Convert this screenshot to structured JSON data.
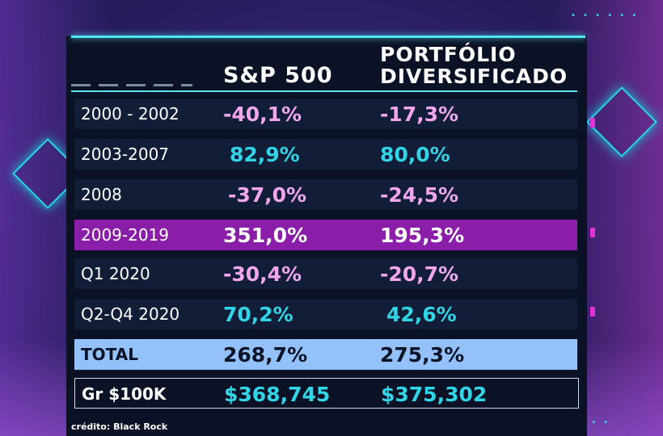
{
  "header": {
    "col1": "S&P 500",
    "col2_line1": "PORTFÓLIO",
    "col2_line2": "DIVERSIFICADO"
  },
  "rows": [
    {
      "label": "2000 - 2002",
      "sp500": "-40,1%",
      "portfolio": "-17,3%"
    },
    {
      "label": "2003-2007",
      "sp500": "82,9%",
      "portfolio": "80,0%"
    },
    {
      "label": "2008",
      "sp500": "-37,0%",
      "portfolio": "-24,5%"
    },
    {
      "label": "2009-2019",
      "sp500": "351,0%",
      "portfolio": "195,3%"
    },
    {
      "label": "Q1 2020",
      "sp500": "-30,4%",
      "portfolio": "-20,7%"
    },
    {
      "label": "Q2-Q4 2020",
      "sp500": "70,2%",
      "portfolio": "42,6%"
    },
    {
      "label": "TOTAL",
      "sp500": "268,7%",
      "portfolio": "275,3%"
    },
    {
      "label": "Gr $100K",
      "sp500": "$368,745",
      "portfolio": "$375,302"
    }
  ],
  "credit": "crédito: Black Rock",
  "colors": {
    "negative": "#f2a6ee",
    "positive": "#30d5e8",
    "highlight_row": "#8a1ea8",
    "total_row": "#93c2fb",
    "accent_line": "#53e6f4"
  }
}
